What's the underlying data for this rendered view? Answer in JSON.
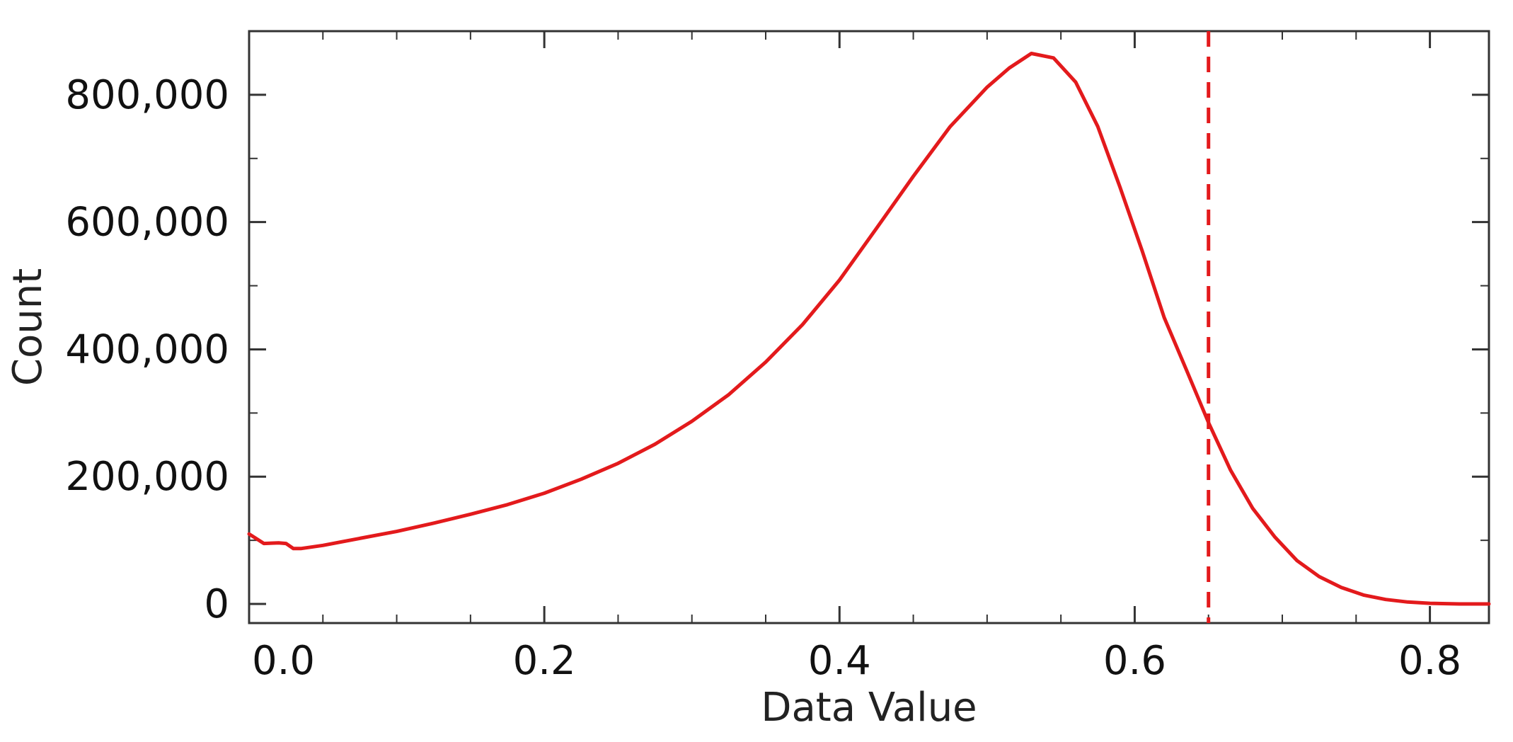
{
  "chart_data": {
    "type": "line",
    "xlabel": "Data Value",
    "ylabel": "Count",
    "xlim": [
      0.0,
      0.84
    ],
    "ylim": [
      -30000,
      900000
    ],
    "x_ticks": [
      0.0,
      0.2,
      0.4,
      0.6,
      0.8
    ],
    "x_tick_labels": [
      "0.0",
      "0.2",
      "0.4",
      "0.6",
      "0.8"
    ],
    "x_minor_step": 0.05,
    "y_ticks": [
      0,
      200000,
      400000,
      600000,
      800000
    ],
    "y_tick_labels": [
      "0",
      "200,000",
      "400,000",
      "600,000",
      "800,000"
    ],
    "y_minor_step": 100000,
    "grid": false,
    "line_color": "#e31a1c",
    "threshold": {
      "x": 0.65,
      "style": "dashed",
      "color": "#e31a1c"
    },
    "series": [
      {
        "x": [
          0.0,
          0.01,
          0.02,
          0.025,
          0.03,
          0.035,
          0.05,
          0.075,
          0.1,
          0.125,
          0.15,
          0.175,
          0.2,
          0.225,
          0.25,
          0.275,
          0.3,
          0.325,
          0.35,
          0.375,
          0.4,
          0.425,
          0.45,
          0.475,
          0.5,
          0.515,
          0.53,
          0.545,
          0.56,
          0.575,
          0.59,
          0.605,
          0.62,
          0.635,
          0.65,
          0.665,
          0.68,
          0.695,
          0.71,
          0.725,
          0.74,
          0.755,
          0.77,
          0.785,
          0.8,
          0.82,
          0.84
        ],
        "y": [
          110000,
          95000,
          96000,
          95000,
          87000,
          87000,
          92000,
          103000,
          114000,
          127000,
          141000,
          156000,
          174000,
          196000,
          221000,
          251000,
          287000,
          329000,
          380000,
          439000,
          509000,
          590000,
          672000,
          750000,
          812000,
          842000,
          865000,
          858000,
          820000,
          750000,
          655000,
          555000,
          450000,
          368000,
          285000,
          210000,
          150000,
          105000,
          68000,
          43000,
          26000,
          14000,
          7000,
          3000,
          1000,
          0,
          0
        ]
      }
    ]
  }
}
